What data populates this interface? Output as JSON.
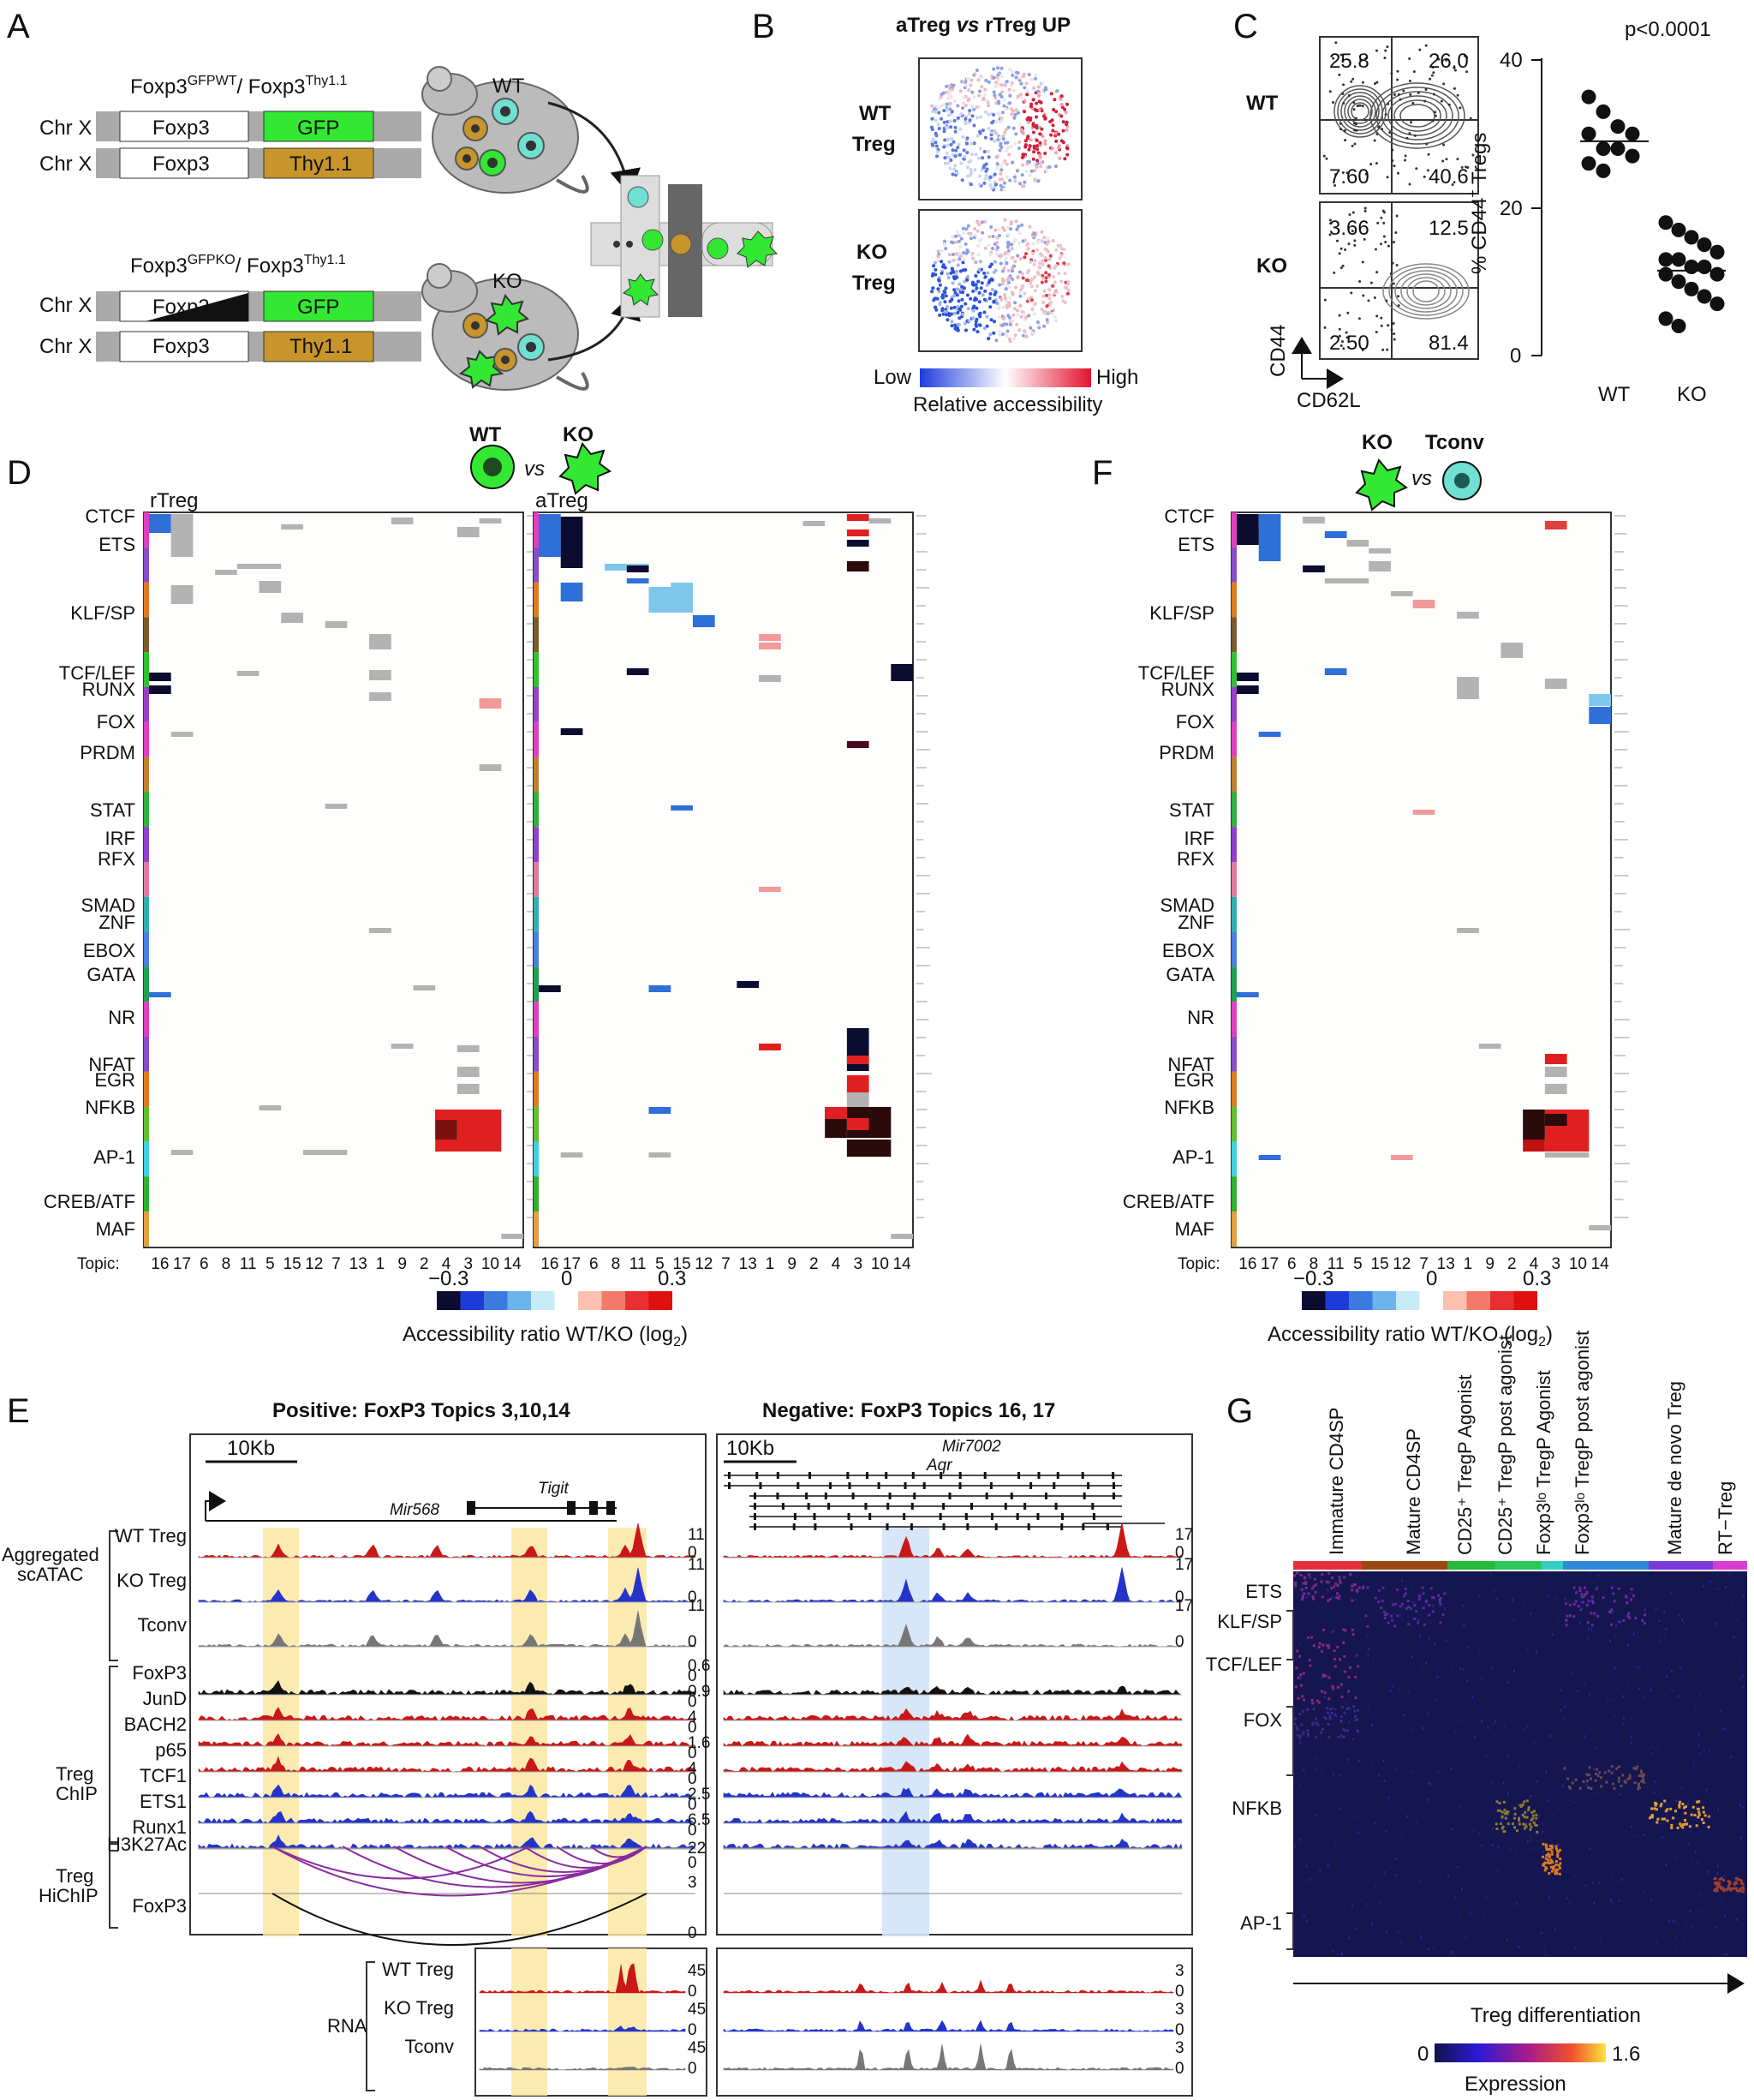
{
  "panels": {
    "a": "A",
    "b": "B",
    "c": "C",
    "d": "D",
    "e": "E",
    "f": "F",
    "g": "G"
  },
  "panelA": {
    "top_genotype_1": "Foxp3",
    "top_genotype_sup_1": "GFPWT",
    "top_genotype_2": "/ Foxp3",
    "top_genotype_sup_2": "Thy1.1",
    "bot_genotype_1": "Foxp3",
    "bot_genotype_sup_1": "GFPKO",
    "bot_genotype_2": "/ Foxp3",
    "bot_genotype_sup_2": "Thy1.1",
    "chr": "Chr X",
    "foxp3": "Foxp3",
    "gfp": "GFP",
    "thy": "Thy1.1",
    "wt": "WT",
    "ko": "KO"
  },
  "panelB": {
    "title_1": "aTreg",
    "title_vs": "vs",
    "title_2": "rTreg UP",
    "row1_a": "WT",
    "row1_b": "Treg",
    "row2_a": "KO",
    "row2_b": "Treg",
    "low": "Low",
    "high": "High",
    "legend": "Relative accessibility"
  },
  "panelC": {
    "wt": "WT",
    "ko": "KO",
    "wt_q": [
      "25.8",
      "26.0",
      "7.60",
      "40.6"
    ],
    "ko_q": [
      "3.66",
      "12.5",
      "2.50",
      "81.4"
    ],
    "yaxis": "CD44",
    "xaxis": "CD62L",
    "pvalue": "p<0.0001",
    "ylabel": "% CD44",
    "ylabel_sup": "+",
    "ylabel_tail": " Tregs",
    "yticks": [
      "0",
      "20",
      "40"
    ],
    "groups": [
      "WT",
      "KO"
    ]
  },
  "panelD": {
    "left_title": "rTreg",
    "right_title": "aTreg",
    "wt": "WT",
    "vs": "vs",
    "ko": "KO",
    "tf_families": [
      "CTCF",
      "ETS",
      "KLF/SP",
      "TCF/LEF",
      "RUNX",
      "FOX",
      "PRDM",
      "STAT",
      "IRF",
      "RFX",
      "SMAD",
      "ZNF",
      "EBOX",
      "GATA",
      "NR",
      "NFAT",
      "EGR",
      "NFKB",
      "AP-1",
      "CREB/ATF",
      "MAF"
    ],
    "topic_label": "Topic:",
    "topics": [
      "16",
      "17",
      "6",
      "8",
      "11",
      "5",
      "15",
      "12",
      "7",
      "13",
      "1",
      "9",
      "2",
      "4",
      "3",
      "10",
      "14"
    ],
    "scale_min": "−0.3",
    "scale_mid": "0",
    "scale_max": "0.3",
    "scale_label": "Accessibility ratio WT/KO (log",
    "scale_sub": "2",
    "scale_tail": ")"
  },
  "panelF": {
    "ko": "KO",
    "vs": "vs",
    "tconv": "Tconv",
    "topics": [
      "16",
      "17",
      "6",
      "8",
      "11",
      "5",
      "15",
      "12",
      "7",
      "13",
      "1",
      "9",
      "2",
      "4",
      "3",
      "10",
      "14"
    ]
  },
  "panelE": {
    "pos_title": "Positive: FoxP3 Topics 3,10,14",
    "neg_title": "Negative: FoxP3 Topics 16, 17",
    "scale": "10Kb",
    "mir568": "Mir568",
    "tigit": "Tigit",
    "mir7002": "Mir7002",
    "aqr": "Aqr",
    "group_scatac": [
      "Aggregated",
      "scATAC"
    ],
    "group_chip": [
      "Treg",
      "ChIP"
    ],
    "group_hichip": [
      "Treg",
      "HiChIP"
    ],
    "group_rna": "RNA",
    "atac_tracks": [
      "WT Treg",
      "KO Treg",
      "Tconv"
    ],
    "chip_tracks": [
      "FoxP3",
      "JunD",
      "BACH2",
      "p65",
      "TCF1",
      "ETS1",
      "Runx1"
    ],
    "hichip_tracks": [
      "H3K27Ac",
      "FoxP3"
    ],
    "rna_tracks": [
      "WT Treg",
      "KO Treg",
      "Tconv"
    ],
    "left_atac_scale": [
      "11",
      "0",
      "11",
      "0",
      "11",
      "0"
    ],
    "right_atac_scale": [
      "17",
      "0",
      "17",
      "0",
      "17",
      "0"
    ],
    "chip_scale": [
      "0.6",
      "0",
      "0.9",
      "0",
      "4",
      "0",
      "1.6",
      "0",
      "4",
      "0",
      "2.5",
      "0",
      "6.5",
      "0"
    ],
    "hichip_scale": [
      "22",
      "0",
      "3",
      "0"
    ],
    "rna_left": [
      "45",
      "0",
      "45",
      "0",
      "45",
      "0"
    ],
    "rna_right": [
      "3",
      "0",
      "3",
      "0",
      "3",
      "0"
    ]
  },
  "panelG": {
    "columns": [
      "Immature CD4SP",
      "Mature CD4SP",
      "CD25⁺ TregP Agonist",
      "CD25⁺ TregP post agonist",
      "Foxp3ˡᵒ TregP Agonist",
      "Foxp3ˡᵒ TregP post agonist",
      "Mature de novo Treg",
      "RT−Treg"
    ],
    "rows": [
      "ETS",
      "KLF/SP",
      "TCF/LEF",
      "FOX",
      "NFKB",
      "AP-1"
    ],
    "arrow_label": "Treg differentiation",
    "scale_min": "0",
    "scale_max": "1.6",
    "scale_label": "Expression"
  },
  "colors": {
    "gfp": "#33e833",
    "thy": "#c8952c",
    "red": "#e01b24",
    "blue": "#2b4ed8",
    "heat_dark": "#12124a"
  }
}
